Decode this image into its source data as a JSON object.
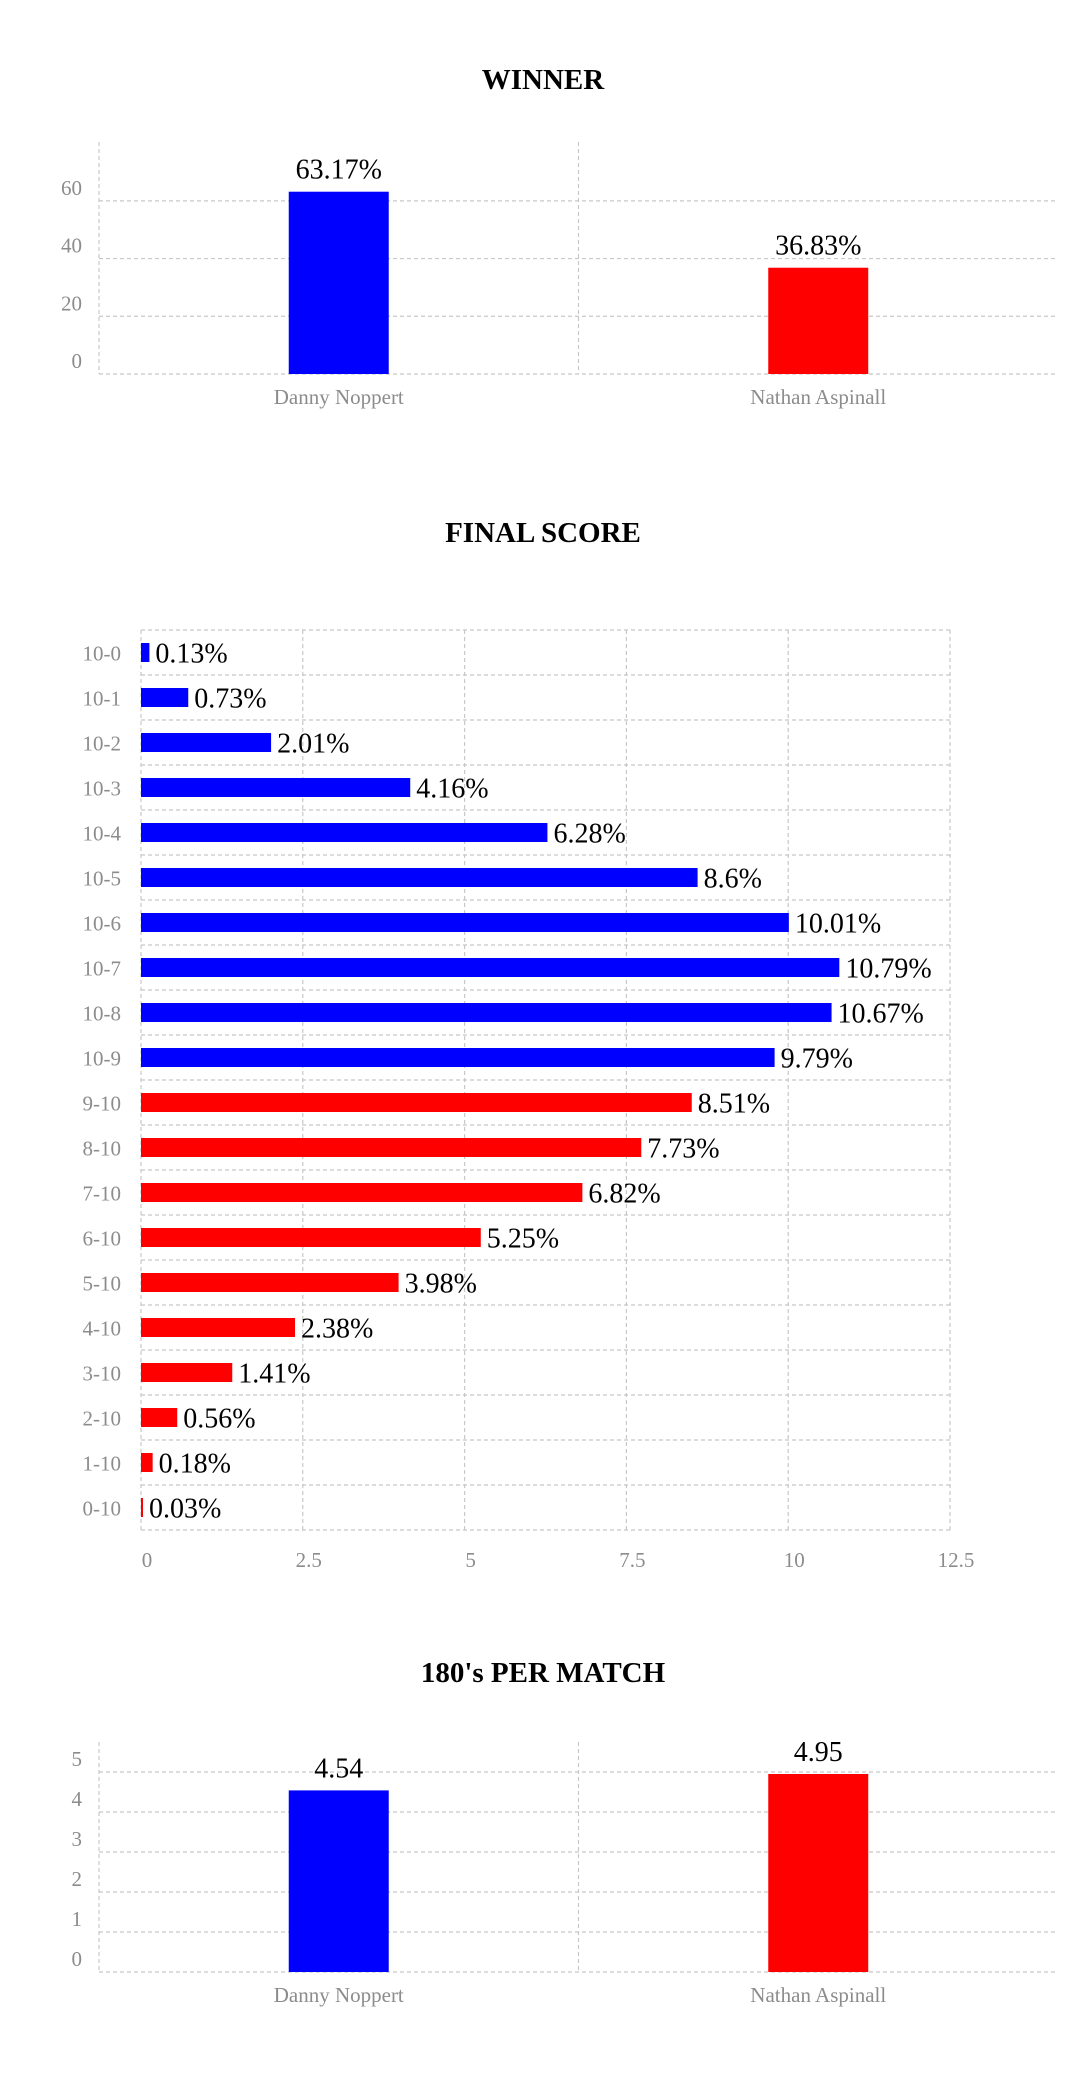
{
  "chart_data": [
    {
      "type": "bar",
      "title": "WINNER",
      "categories": [
        "Danny Noppert",
        "Nathan Aspinall"
      ],
      "values": [
        63.17,
        36.83
      ],
      "labels": [
        "63.17%",
        "36.83%"
      ],
      "colors": [
        "#0000ff",
        "#ff0000"
      ],
      "yticks": [
        0,
        20,
        40,
        60
      ],
      "ylim": [
        0,
        70
      ],
      "grid": true
    },
    {
      "type": "bar",
      "orientation": "horizontal",
      "title": "FINAL SCORE",
      "categories": [
        "10-0",
        "10-1",
        "10-2",
        "10-3",
        "10-4",
        "10-5",
        "10-6",
        "10-7",
        "10-8",
        "10-9",
        "9-10",
        "8-10",
        "7-10",
        "6-10",
        "5-10",
        "4-10",
        "3-10",
        "2-10",
        "1-10",
        "0-10"
      ],
      "values": [
        0.13,
        0.73,
        2.01,
        4.16,
        6.28,
        8.6,
        10.01,
        10.79,
        10.67,
        9.79,
        8.51,
        7.73,
        6.82,
        5.25,
        3.98,
        2.38,
        1.41,
        0.56,
        0.18,
        0.03
      ],
      "labels": [
        "0.13%",
        "0.73%",
        "2.01%",
        "4.16%",
        "6.28%",
        "8.6%",
        "10.01%",
        "10.79%",
        "10.67%",
        "9.79%",
        "8.51%",
        "7.73%",
        "6.82%",
        "5.25%",
        "3.98%",
        "2.38%",
        "1.41%",
        "0.56%",
        "0.18%",
        "0.03%"
      ],
      "colors": [
        "#0000ff",
        "#0000ff",
        "#0000ff",
        "#0000ff",
        "#0000ff",
        "#0000ff",
        "#0000ff",
        "#0000ff",
        "#0000ff",
        "#0000ff",
        "#ff0000",
        "#ff0000",
        "#ff0000",
        "#ff0000",
        "#ff0000",
        "#ff0000",
        "#ff0000",
        "#ff0000",
        "#ff0000",
        "#ff0000"
      ],
      "xticks": [
        "0",
        "2.5",
        "5",
        "7.5",
        "10",
        "12.5"
      ],
      "xlim": [
        0,
        12.5
      ],
      "grid": true
    },
    {
      "type": "bar",
      "title": "180's PER MATCH",
      "categories": [
        "Danny Noppert",
        "Nathan Aspinall"
      ],
      "values": [
        4.54,
        4.95
      ],
      "labels": [
        "4.54",
        "4.95"
      ],
      "colors": [
        "#0000ff",
        "#ff0000"
      ],
      "yticks": [
        0,
        1,
        2,
        3,
        4,
        5
      ],
      "ylim": [
        0,
        5
      ],
      "grid": true
    }
  ]
}
